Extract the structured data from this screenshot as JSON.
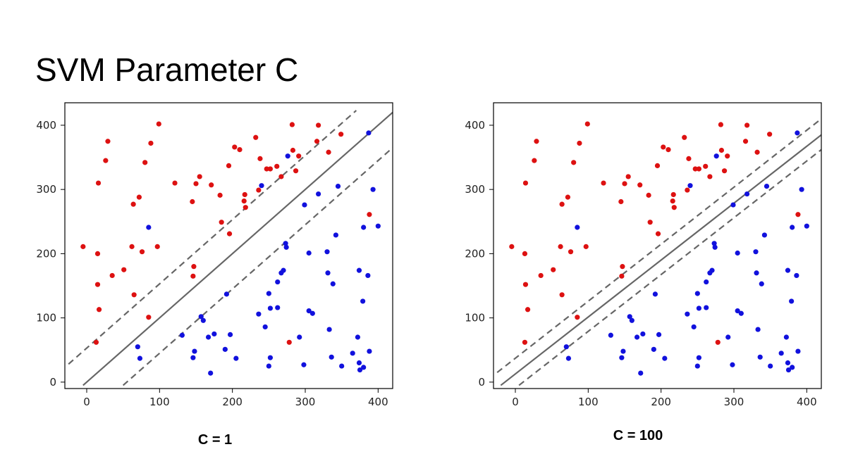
{
  "title": "SVM Parameter C",
  "colors": {
    "class_a": "#dd1111",
    "class_b": "#1111dd",
    "line": "#666666",
    "axis": "#000000"
  },
  "chart_data": [
    {
      "type": "scatter",
      "caption": "C = 1",
      "xlim": [
        -30,
        420
      ],
      "ylim": [
        -10,
        435
      ],
      "xticks": [
        "0",
        "100",
        "200",
        "300",
        "400"
      ],
      "yticks": [
        "0",
        "100",
        "200",
        "300",
        "400"
      ],
      "grid": false,
      "decision_boundary": {
        "label": "decision boundary",
        "style": "solid",
        "points": [
          [
            -5,
            -5
          ],
          [
            420,
            420
          ]
        ]
      },
      "margin_upper": {
        "label": "margin",
        "style": "dashed",
        "points": [
          [
            -25,
            28
          ],
          [
            370,
            423
          ]
        ]
      },
      "margin_lower": {
        "label": "margin",
        "style": "dashed",
        "points": [
          [
            50,
            -5
          ],
          [
            420,
            365
          ]
        ]
      },
      "series": [
        {
          "color": "red",
          "points": [
            [
              -5,
              211
            ],
            [
              15,
              200
            ],
            [
              16,
              310
            ],
            [
              15,
              152
            ],
            [
              17,
              113
            ],
            [
              13,
              62
            ],
            [
              26,
              345
            ],
            [
              29,
              375
            ],
            [
              35,
              166
            ],
            [
              51,
              175
            ],
            [
              62,
              211
            ],
            [
              64,
              277
            ],
            [
              65,
              136
            ],
            [
              72,
              288
            ],
            [
              76,
              203
            ],
            [
              80,
              342
            ],
            [
              85,
              101
            ],
            [
              88,
              372
            ],
            [
              97,
              211
            ],
            [
              99,
              402
            ],
            [
              121,
              310
            ],
            [
              145,
              281
            ],
            [
              147,
              180
            ],
            [
              146,
              165
            ],
            [
              150,
              309
            ],
            [
              155,
              320
            ],
            [
              171,
              307
            ],
            [
              183,
              291
            ],
            [
              185,
              249
            ],
            [
              195,
              337
            ],
            [
              196,
              231
            ],
            [
              203,
              366
            ],
            [
              210,
              362
            ],
            [
              216,
              282
            ],
            [
              217,
              292
            ],
            [
              218,
              272
            ],
            [
              232,
              381
            ],
            [
              236,
              299
            ],
            [
              238,
              348
            ],
            [
              247,
              332
            ],
            [
              252,
              332
            ],
            [
              261,
              336
            ],
            [
              267,
              320
            ],
            [
              282,
              401
            ],
            [
              283,
              361
            ],
            [
              287,
              329
            ],
            [
              291,
              352
            ],
            [
              278,
              62
            ],
            [
              318,
              400
            ],
            [
              316,
              375
            ],
            [
              332,
              358
            ],
            [
              349,
              386
            ],
            [
              388,
              261
            ]
          ]
        },
        {
          "color": "blue",
          "points": [
            [
              70,
              55
            ],
            [
              73,
              37
            ],
            [
              85,
              241
            ],
            [
              131,
              73
            ],
            [
              146,
              38
            ],
            [
              148,
              48
            ],
            [
              157,
              102
            ],
            [
              160,
              96
            ],
            [
              167,
              70
            ],
            [
              170,
              14
            ],
            [
              175,
              75
            ],
            [
              190,
              51
            ],
            [
              192,
              137
            ],
            [
              197,
              74
            ],
            [
              205,
              37
            ],
            [
              236,
              106
            ],
            [
              240,
              306
            ],
            [
              245,
              86
            ],
            [
              250,
              138
            ],
            [
              250,
              25
            ],
            [
              252,
              115
            ],
            [
              252,
              38
            ],
            [
              262,
              156
            ],
            [
              262,
              116
            ],
            [
              267,
              170
            ],
            [
              270,
              174
            ],
            [
              273,
              216
            ],
            [
              274,
              210
            ],
            [
              276,
              352
            ],
            [
              292,
              70
            ],
            [
              298,
              27
            ],
            [
              299,
              276
            ],
            [
              305,
              111
            ],
            [
              305,
              201
            ],
            [
              310,
              107
            ],
            [
              318,
              293
            ],
            [
              330,
              203
            ],
            [
              331,
              170
            ],
            [
              333,
              82
            ],
            [
              336,
              39
            ],
            [
              338,
              153
            ],
            [
              345,
              305
            ],
            [
              342,
              229
            ],
            [
              350,
              25
            ],
            [
              365,
              45
            ],
            [
              372,
              70
            ],
            [
              374,
              174
            ],
            [
              374,
              30
            ],
            [
              375,
              19
            ],
            [
              379,
              126
            ],
            [
              380,
              241
            ],
            [
              380,
              23
            ],
            [
              386,
              166
            ],
            [
              388,
              48
            ],
            [
              387,
              388
            ],
            [
              393,
              300
            ],
            [
              400,
              243
            ]
          ]
        }
      ]
    },
    {
      "type": "scatter",
      "caption": "C = 100",
      "xlim": [
        -30,
        420
      ],
      "ylim": [
        -10,
        435
      ],
      "xticks": [
        "0",
        "100",
        "200",
        "300",
        "400"
      ],
      "yticks": [
        "0",
        "100",
        "200",
        "300",
        "400"
      ],
      "grid": false,
      "decision_boundary": {
        "label": "decision boundary",
        "style": "solid",
        "points": [
          [
            -20,
            -5
          ],
          [
            420,
            385
          ]
        ]
      },
      "margin_upper": {
        "label": "margin",
        "style": "dashed",
        "points": [
          [
            -25,
            15
          ],
          [
            420,
            410
          ]
        ]
      },
      "margin_lower": {
        "label": "margin",
        "style": "dashed",
        "points": [
          [
            5,
            -5
          ],
          [
            420,
            362
          ]
        ]
      },
      "series": [
        {
          "color": "red",
          "points": [
            [
              -5,
              211
            ],
            [
              13,
              200
            ],
            [
              14,
              310
            ],
            [
              14,
              152
            ],
            [
              17,
              113
            ],
            [
              13,
              62
            ],
            [
              26,
              345
            ],
            [
              29,
              375
            ],
            [
              35,
              166
            ],
            [
              52,
              175
            ],
            [
              62,
              211
            ],
            [
              64,
              277
            ],
            [
              64,
              136
            ],
            [
              72,
              288
            ],
            [
              76,
              203
            ],
            [
              80,
              342
            ],
            [
              85,
              101
            ],
            [
              88,
              372
            ],
            [
              97,
              211
            ],
            [
              99,
              402
            ],
            [
              121,
              310
            ],
            [
              145,
              281
            ],
            [
              147,
              180
            ],
            [
              146,
              165
            ],
            [
              150,
              309
            ],
            [
              155,
              320
            ],
            [
              171,
              307
            ],
            [
              183,
              291
            ],
            [
              185,
              249
            ],
            [
              195,
              337
            ],
            [
              196,
              231
            ],
            [
              203,
              366
            ],
            [
              210,
              362
            ],
            [
              216,
              282
            ],
            [
              217,
              292
            ],
            [
              218,
              272
            ],
            [
              232,
              381
            ],
            [
              236,
              299
            ],
            [
              238,
              348
            ],
            [
              247,
              332
            ],
            [
              252,
              332
            ],
            [
              261,
              336
            ],
            [
              267,
              320
            ],
            [
              282,
              401
            ],
            [
              283,
              361
            ],
            [
              287,
              329
            ],
            [
              291,
              352
            ],
            [
              278,
              62
            ],
            [
              318,
              400
            ],
            [
              316,
              375
            ],
            [
              332,
              358
            ],
            [
              349,
              386
            ],
            [
              388,
              261
            ]
          ]
        },
        {
          "color": "blue",
          "points": [
            [
              70,
              55
            ],
            [
              73,
              37
            ],
            [
              85,
              241
            ],
            [
              131,
              73
            ],
            [
              146,
              38
            ],
            [
              148,
              48
            ],
            [
              157,
              102
            ],
            [
              160,
              96
            ],
            [
              167,
              70
            ],
            [
              172,
              14
            ],
            [
              175,
              75
            ],
            [
              190,
              51
            ],
            [
              192,
              137
            ],
            [
              197,
              74
            ],
            [
              205,
              37
            ],
            [
              236,
              106
            ],
            [
              240,
              306
            ],
            [
              245,
              86
            ],
            [
              250,
              138
            ],
            [
              250,
              25
            ],
            [
              252,
              115
            ],
            [
              252,
              38
            ],
            [
              262,
              156
            ],
            [
              262,
              116
            ],
            [
              267,
              170
            ],
            [
              270,
              174
            ],
            [
              273,
              216
            ],
            [
              274,
              210
            ],
            [
              276,
              352
            ],
            [
              292,
              70
            ],
            [
              298,
              27
            ],
            [
              299,
              276
            ],
            [
              305,
              111
            ],
            [
              305,
              201
            ],
            [
              310,
              107
            ],
            [
              318,
              293
            ],
            [
              330,
              203
            ],
            [
              331,
              170
            ],
            [
              333,
              82
            ],
            [
              336,
              39
            ],
            [
              338,
              153
            ],
            [
              345,
              305
            ],
            [
              342,
              229
            ],
            [
              350,
              25
            ],
            [
              365,
              45
            ],
            [
              372,
              70
            ],
            [
              374,
              174
            ],
            [
              374,
              30
            ],
            [
              375,
              19
            ],
            [
              379,
              126
            ],
            [
              380,
              241
            ],
            [
              380,
              23
            ],
            [
              386,
              166
            ],
            [
              388,
              48
            ],
            [
              387,
              388
            ],
            [
              393,
              300
            ],
            [
              400,
              243
            ]
          ]
        }
      ]
    }
  ]
}
